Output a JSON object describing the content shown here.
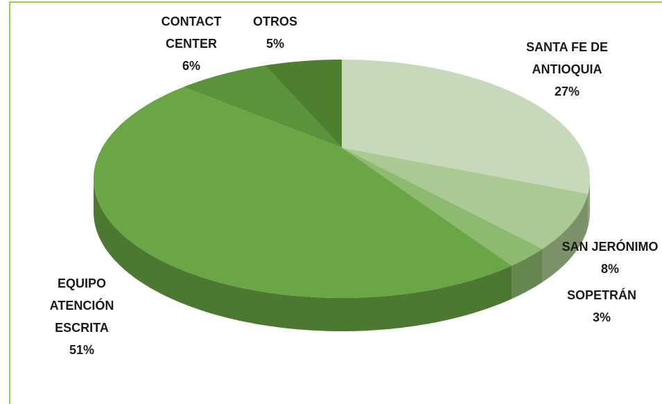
{
  "chart_data": {
    "type": "pie",
    "categories": [
      "SANTA FE DE ANTIOQUIA",
      "SAN JERÓNIMO",
      "SOPETRÁN",
      "EQUIPO ATENCIÓN ESCRITA",
      "CONTACT CENTER",
      "OTROS"
    ],
    "values": [
      27,
      8,
      3,
      51,
      6,
      5
    ],
    "value_labels": [
      "27%",
      "8%",
      "3%",
      "51%",
      "6%",
      "5%"
    ],
    "colors": [
      "#c6d9ba",
      "#aac993",
      "#8dba6f",
      "#6aa645",
      "#5a9339",
      "#4d7f2f"
    ]
  }
}
